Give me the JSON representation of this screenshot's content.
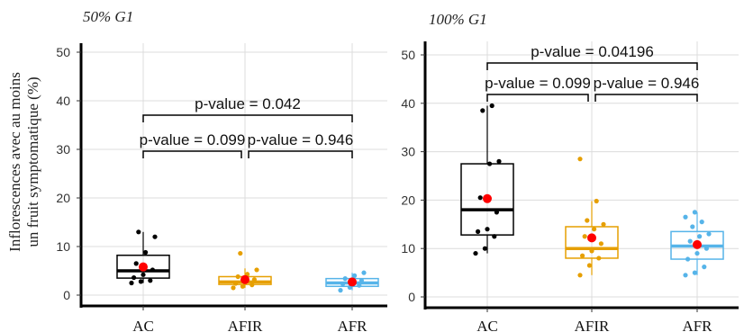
{
  "ylabel_lines": [
    "Inflorescences avec au moins",
    "un fruit symptomatique (%)"
  ],
  "chart_data": [
    {
      "type": "box",
      "title": "50% G1",
      "categories": [
        "AC",
        "AFIR",
        "AFR"
      ],
      "colors": [
        "#000000",
        "#E69F00",
        "#56B4E9"
      ],
      "ylim": [
        0,
        50
      ],
      "yticks": [
        0,
        10,
        20,
        30,
        40,
        50
      ],
      "grid": true,
      "boxes": [
        {
          "q1": 3.5,
          "median": 5.0,
          "q3": 8.2,
          "whisker_low": 2.5,
          "whisker_high": 13.0,
          "mean": 5.8,
          "points": [
            2.5,
            2.8,
            3.0,
            3.6,
            4.2,
            5.2,
            6.5,
            8.8,
            12.0,
            13.0
          ]
        },
        {
          "q1": 2.2,
          "median": 2.7,
          "q3": 3.8,
          "whisker_low": 1.5,
          "whisker_high": 5.5,
          "mean": 3.2,
          "points": [
            1.5,
            1.8,
            2.1,
            2.4,
            2.8,
            3.2,
            3.8,
            4.3,
            5.2,
            8.6
          ]
        },
        {
          "q1": 1.8,
          "median": 2.5,
          "q3": 3.4,
          "whisker_low": 1.0,
          "whisker_high": 4.6,
          "mean": 2.7,
          "points": [
            1.0,
            1.6,
            2.0,
            2.3,
            2.6,
            3.0,
            3.4,
            4.0,
            4.6
          ]
        }
      ],
      "comparisons": [
        {
          "from": 0,
          "to": 1,
          "level": 1,
          "label": "p-value = 0.099"
        },
        {
          "from": 1,
          "to": 2,
          "level": 1,
          "label": "p-value = 0.946"
        },
        {
          "from": 0,
          "to": 2,
          "level": 2,
          "label": "p-value =  0.042"
        }
      ]
    },
    {
      "type": "box",
      "title": "100% G1",
      "categories": [
        "AC",
        "AFIR",
        "AFR"
      ],
      "colors": [
        "#000000",
        "#E69F00",
        "#56B4E9"
      ],
      "ylim": [
        0,
        50
      ],
      "yticks": [
        0,
        10,
        20,
        30,
        40,
        50
      ],
      "grid": true,
      "boxes": [
        {
          "q1": 12.8,
          "median": 18.0,
          "q3": 27.5,
          "whisker_low": 9.0,
          "whisker_high": 39.5,
          "mean": 20.3,
          "points": [
            9.0,
            10.0,
            12.5,
            13.5,
            14.0,
            17.5,
            20.5,
            27.5,
            28.0,
            38.5,
            39.5
          ]
        },
        {
          "q1": 8.0,
          "median": 10.0,
          "q3": 14.5,
          "whisker_low": 4.5,
          "whisker_high": 19.8,
          "mean": 12.2,
          "points": [
            4.5,
            6.5,
            8.0,
            8.5,
            9.5,
            11.0,
            12.5,
            14.0,
            15.0,
            15.8,
            19.8,
            28.5
          ]
        },
        {
          "q1": 7.8,
          "median": 10.5,
          "q3": 13.5,
          "whisker_low": 4.5,
          "whisker_high": 17.5,
          "mean": 10.8,
          "points": [
            4.5,
            5.0,
            6.2,
            7.8,
            9.0,
            10.0,
            11.5,
            12.5,
            13.0,
            14.5,
            15.5,
            16.5,
            17.5
          ]
        }
      ],
      "comparisons": [
        {
          "from": 0,
          "to": 1,
          "level": 1,
          "label": "p-value = 0.099"
        },
        {
          "from": 1,
          "to": 2,
          "level": 1,
          "label": "p-value = 0.946"
        },
        {
          "from": 0,
          "to": 2,
          "level": 2,
          "label": "p-value =  0.04196"
        }
      ]
    }
  ]
}
